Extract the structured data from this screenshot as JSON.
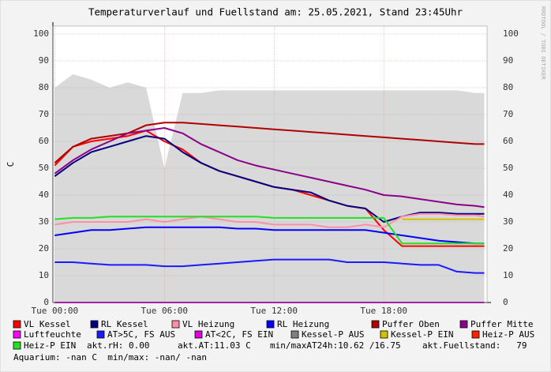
{
  "chart_data": {
    "type": "line",
    "title": "Temperaturverlauf und Fuellstand am: 25.05.2021, Stand 23:45Uhr",
    "y_label": "C",
    "watermark": "RRDTOOL / TOBI OETIKER",
    "x": [
      0,
      1,
      2,
      3,
      4,
      5,
      6,
      7,
      8,
      9,
      10,
      11,
      12,
      13,
      14,
      15,
      16,
      17,
      18,
      19,
      20,
      21,
      22,
      23,
      23.5
    ],
    "xlim": [
      -0.1,
      23.65
    ],
    "xticks": [
      {
        "value": 0,
        "label": "Tue 00:00"
      },
      {
        "value": 6,
        "label": "Tue 06:00"
      },
      {
        "value": 12,
        "label": "Tue 12:00"
      },
      {
        "value": 18,
        "label": "Tue 18:00"
      }
    ],
    "ylim": [
      0,
      100
    ],
    "yticks": [
      0,
      10,
      20,
      30,
      40,
      50,
      60,
      70,
      80,
      90,
      100
    ],
    "grid": true,
    "area": {
      "color": "#d9d9d9",
      "values": [
        80,
        85,
        83,
        80,
        82,
        80,
        50,
        78,
        78,
        79,
        79,
        79,
        79,
        79,
        79,
        79,
        79,
        79,
        79,
        79,
        79,
        79,
        79,
        78,
        78
      ]
    },
    "series": [
      {
        "name": "VL Kessel",
        "color": "#ff0000",
        "values": [
          51,
          58,
          60,
          61,
          62,
          64,
          60,
          57,
          52,
          49,
          47,
          45,
          43,
          42,
          40,
          38,
          36,
          35,
          27,
          21,
          21,
          21,
          21,
          21,
          21
        ]
      },
      {
        "name": "RL Kessel",
        "color": "#000080",
        "values": [
          47,
          52,
          56,
          58,
          60,
          62,
          61,
          56,
          52,
          49,
          47,
          45,
          43,
          42,
          41,
          38,
          36,
          35,
          30,
          32,
          33.5,
          33.5,
          33,
          33,
          33
        ]
      },
      {
        "name": "VL Heizung",
        "color": "#ff8fa8",
        "values": [
          29,
          30,
          30,
          30,
          30,
          31,
          30,
          31,
          32,
          31,
          30,
          30,
          29,
          29,
          29,
          28,
          28,
          29,
          28,
          32,
          33,
          33,
          32.5,
          32.5,
          32
        ]
      },
      {
        "name": "RL Heizung",
        "color": "#0000ff",
        "values": [
          25,
          26,
          27,
          27,
          27.5,
          28,
          28,
          28,
          28,
          28,
          27.5,
          27.5,
          27,
          27,
          27,
          27,
          27,
          27,
          26,
          25,
          24,
          23,
          22.5,
          22,
          22
        ]
      },
      {
        "name": "Puffer Oben",
        "color": "#b00000",
        "values": [
          52,
          58,
          61,
          62,
          63,
          66,
          67,
          67,
          66.5,
          66,
          65.5,
          65,
          64.5,
          64,
          63.5,
          63,
          62.5,
          62,
          61.5,
          61,
          60.5,
          60,
          59.5,
          59,
          59
        ]
      },
      {
        "name": "Puffer Mitte",
        "color": "#8b008b",
        "values": [
          48,
          53,
          57,
          60,
          63,
          64,
          65,
          63,
          59,
          56,
          53,
          51,
          49.5,
          48,
          46.5,
          45,
          43.5,
          42,
          40,
          39.5,
          38.5,
          37.5,
          36.5,
          36,
          35.5
        ]
      },
      {
        "name": "Luftfeuchte",
        "color": "#ff00ff",
        "values": [
          0,
          0,
          0,
          0,
          0,
          0,
          0,
          0,
          0,
          0,
          0,
          0,
          0,
          0,
          0,
          0,
          0,
          0,
          0,
          0,
          0,
          0,
          0,
          0,
          0
        ]
      },
      {
        "name": "AT>5C, FS AUS",
        "color": "#1a1aff",
        "values": [
          15,
          15,
          14.5,
          14,
          14,
          14,
          13.5,
          13.5,
          14,
          14.5,
          15,
          15.5,
          16,
          16,
          16,
          16,
          15,
          15,
          15,
          14.5,
          14,
          14,
          11.5,
          11,
          11
        ]
      },
      {
        "name": "AT<2C, FS EIN",
        "color": "#e000e0"
      },
      {
        "name": "Kessel-P AUS",
        "color": "#808080"
      },
      {
        "name": "Kessel-P EIN",
        "color": "#d4c000",
        "values": [
          null,
          null,
          null,
          null,
          null,
          null,
          null,
          null,
          null,
          null,
          null,
          null,
          null,
          null,
          null,
          null,
          null,
          null,
          null,
          31,
          31,
          31,
          31,
          31,
          31
        ]
      },
      {
        "name": "Heiz-P AUS",
        "color": "#ff2000"
      },
      {
        "name": "Heiz-P EIN",
        "color": "#22e022",
        "values": [
          31,
          31.5,
          31.5,
          32,
          32,
          32,
          32,
          32,
          32,
          32,
          32,
          32,
          31.5,
          31.5,
          31.5,
          31.5,
          31.5,
          31.5,
          31.5,
          22,
          22,
          22,
          22,
          22,
          22
        ]
      }
    ],
    "notes": [
      "akt.rH: 0.00",
      "akt.AT:11.03 C",
      "min/maxAT24h:10.62 /16.75",
      "akt.Fuellstand:   79",
      "Aquarium: -nan C  min/max: -nan/ -nan"
    ]
  }
}
